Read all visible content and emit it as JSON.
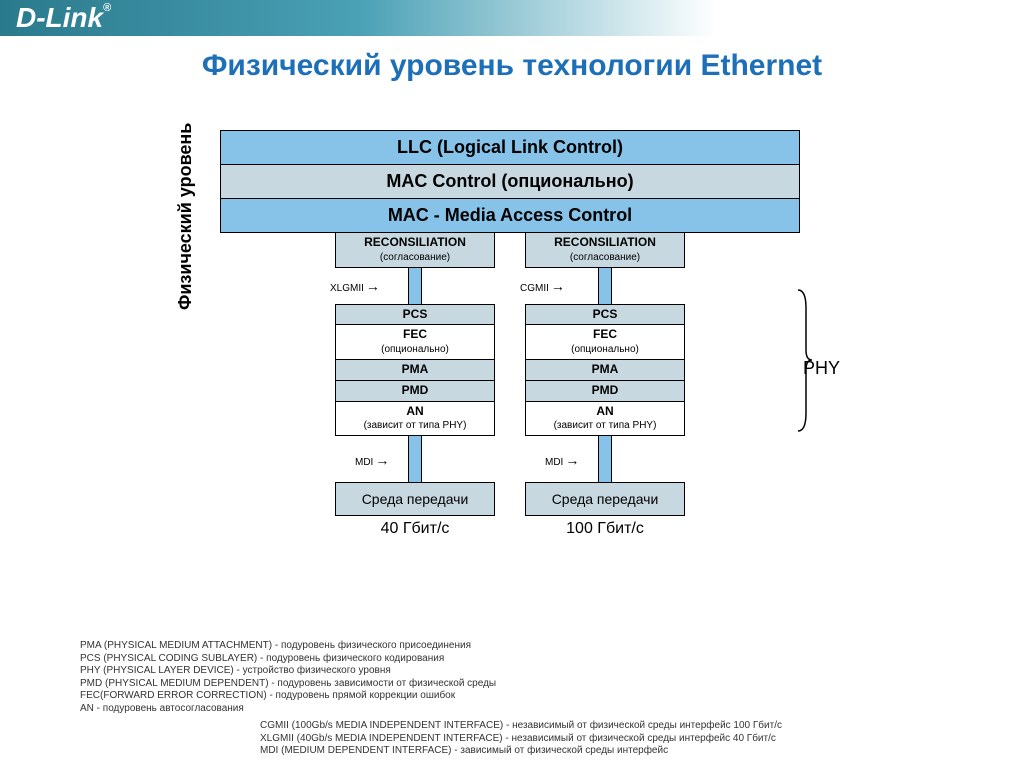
{
  "brand": "D-Link",
  "brand_reg": "®",
  "title": "Физический уровень технологии Ethernet",
  "colors": {
    "header_box": "#87c3e8",
    "sub_box": "#c8d8e0",
    "white_box": "#ffffff",
    "connector": "#87c3e8",
    "title_color": "#1d6fb7"
  },
  "top_layers": [
    {
      "label": "LLC (Logical Link Control)",
      "bg": "#87c3e8"
    },
    {
      "label": "MAC Control (опционально)",
      "bg": "#c8d8e0"
    },
    {
      "label": "MAC - Media Access Control",
      "bg": "#87c3e8"
    }
  ],
  "vertical_label": "Физический уровень",
  "phy_label": "PHY",
  "columns": [
    {
      "speed": "40 Гбит/с",
      "iface_top": "XLGMII",
      "iface_bottom": "MDI",
      "reconciliation": {
        "title": "RECONSILIATION",
        "sub": "(согласование)",
        "bg": "#c8d8e0"
      },
      "stack": [
        {
          "label": "PCS",
          "sub": "",
          "bg": "#c8d8e0"
        },
        {
          "label": "FEC",
          "sub": "(опционально)",
          "bg": "#ffffff"
        },
        {
          "label": "PMA",
          "sub": "",
          "bg": "#c8d8e0"
        },
        {
          "label": "PMD",
          "sub": "",
          "bg": "#c8d8e0"
        },
        {
          "label": "AN",
          "sub": "(зависит от типа PHY)",
          "bg": "#ffffff"
        }
      ],
      "medium": {
        "label": "Среда передачи",
        "bg": "#c8d8e0"
      }
    },
    {
      "speed": "100 Гбит/с",
      "iface_top": "CGMII",
      "iface_bottom": "MDI",
      "reconciliation": {
        "title": "RECONSILIATION",
        "sub": "(согласование)",
        "bg": "#c8d8e0"
      },
      "stack": [
        {
          "label": "PCS",
          "sub": "",
          "bg": "#c8d8e0"
        },
        {
          "label": "FEC",
          "sub": "(опционально)",
          "bg": "#ffffff"
        },
        {
          "label": "PMA",
          "sub": "",
          "bg": "#c8d8e0"
        },
        {
          "label": "PMD",
          "sub": "",
          "bg": "#c8d8e0"
        },
        {
          "label": "AN",
          "sub": "(зависит от типа PHY)",
          "bg": "#ffffff"
        }
      ],
      "medium": {
        "label": "Среда передачи",
        "bg": "#c8d8e0"
      }
    }
  ],
  "legend1": [
    "PMA (PHYSICAL MEDIUM ATTACHMENT) - подуровень физического присоединения",
    "PCS (PHYSICAL CODING SUBLAYER) - подуровень физического кодирования",
    "PHY (PHYSICAL LAYER DEVICE) - устройство физического уровня",
    "PMD (PHYSICAL MEDIUM DEPENDENT) - подуровень зависимости от физической среды",
    "FEC(FORWARD ERROR CORRECTION) - подуровень прямой коррекции ошибок",
    "AN -  подуровень автосогласования"
  ],
  "legend2": [
    "CGMII (100Gb/s MEDIA INDEPENDENT INTERFACE) - независимый от физической среды интерфейс 100 Гбит/с",
    "XLGMII (40Gb/s MEDIA INDEPENDENT INTERFACE) - независимый от физической среды интерфейс 40 Гбит/с",
    "MDI (MEDIUM DEPENDENT INTERFACE) - зависимый от физической среды интерфейс"
  ]
}
